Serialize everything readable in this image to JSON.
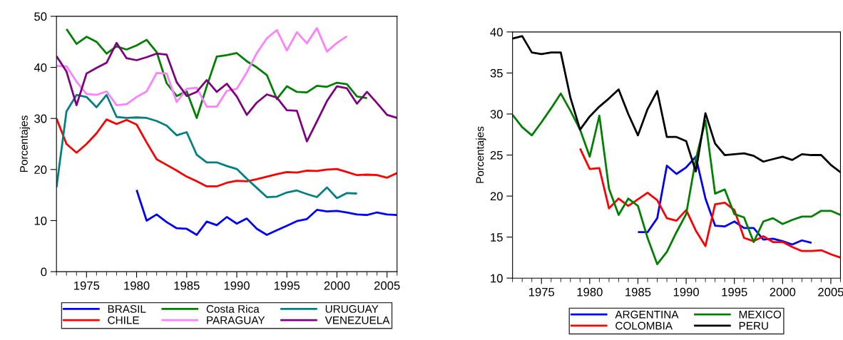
{
  "chart_data": [
    {
      "type": "line",
      "ylabel": "Porcentajes",
      "xlim": [
        1972,
        2006
      ],
      "xticks": [
        1975,
        1980,
        1985,
        1990,
        1995,
        2000,
        2005
      ],
      "ylim": [
        0,
        50
      ],
      "yticks": [
        0,
        10,
        20,
        30,
        40,
        50
      ],
      "grid": false,
      "legend": "bottom",
      "line_style": "solid",
      "marker": "none",
      "series": [
        {
          "name": "BRASIL",
          "color": "#0000ff",
          "x": [
            1980,
            1981,
            1982,
            1983,
            1984,
            1985,
            1986,
            1987,
            1988,
            1989,
            1990,
            1991,
            1992,
            1993,
            1994,
            1995,
            1996,
            1997,
            1998,
            1999,
            2000,
            2001,
            2002,
            2003,
            2004,
            2005,
            2006
          ],
          "values": [
            16,
            10,
            11.2,
            9.7,
            8.5,
            8.4,
            7.2,
            9.8,
            9.1,
            10.7,
            9.4,
            10.4,
            8.4,
            7.2,
            8.1,
            9,
            9.9,
            10.3,
            12.1,
            11.8,
            11.9,
            11.6,
            11.2,
            11.1,
            11.6,
            11.2,
            11.1
          ]
        },
        {
          "name": "CHILE",
          "color": "#ff0000",
          "x": [
            1972,
            1973,
            1974,
            1975,
            1976,
            1977,
            1978,
            1979,
            1980,
            1981,
            1982,
            1983,
            1984,
            1985,
            1986,
            1987,
            1988,
            1989,
            1990,
            1991,
            1992,
            1993,
            1994,
            1995,
            1996,
            1997,
            1998,
            1999,
            2000,
            2001,
            2002,
            2003,
            2004,
            2005,
            2006
          ],
          "values": [
            30,
            25,
            23.3,
            25,
            27.1,
            29.8,
            28.9,
            29.7,
            28.8,
            25.3,
            22,
            20.9,
            19.8,
            18.6,
            17.7,
            16.7,
            16.7,
            17.4,
            17.8,
            17.7,
            18.1,
            18.6,
            19.1,
            19.5,
            19.4,
            19.8,
            19.7,
            20,
            20.1,
            19.5,
            18.9,
            19,
            18.9,
            18.4,
            19.3
          ]
        },
        {
          "name": "Costa Rica",
          "color": "#008000",
          "x": [
            1973,
            1974,
            1975,
            1976,
            1977,
            1978,
            1979,
            1980,
            1981,
            1982,
            1983,
            1984,
            1985,
            1986,
            1987,
            1988,
            1989,
            1990,
            1991,
            1992,
            1993,
            1994,
            1995,
            1996,
            1997,
            1998,
            1999,
            2000,
            2001,
            2002,
            2003
          ],
          "values": [
            47.5,
            44.6,
            46,
            45,
            42.7,
            44.1,
            43.5,
            44.3,
            45.4,
            43,
            36.9,
            34.4,
            35.3,
            30.1,
            36.3,
            42.1,
            42.4,
            42.8,
            41.2,
            40,
            38.5,
            33.8,
            36.3,
            35.2,
            35.1,
            36.4,
            36.2,
            37,
            36.7,
            34.3,
            34
          ]
        },
        {
          "name": "PARAGUAY",
          "color": "#ff80ff",
          "x": [
            1972,
            1973,
            1974,
            1975,
            1976,
            1977,
            1978,
            1979,
            1980,
            1981,
            1982,
            1983,
            1984,
            1985,
            1986,
            1987,
            1988,
            1989,
            1990,
            1991,
            1992,
            1993,
            1994,
            1995,
            1996,
            1997,
            1998,
            1999,
            2000,
            2001
          ],
          "values": [
            40.3,
            40.2,
            37.2,
            34.8,
            34.6,
            35.3,
            32.6,
            32.8,
            34.2,
            35.3,
            38.9,
            38.8,
            33.2,
            35.8,
            36,
            32.3,
            32.3,
            35.4,
            35.8,
            39,
            42.8,
            45.7,
            47.3,
            43.3,
            46.9,
            44.7,
            47.7,
            43.1,
            44.8,
            46.1
          ]
        },
        {
          "name": "URUGUAY",
          "color": "#008080",
          "x": [
            1972,
            1973,
            1974,
            1975,
            1976,
            1977,
            1978,
            1979,
            1980,
            1981,
            1982,
            1983,
            1984,
            1985,
            1986,
            1987,
            1988,
            1989,
            1990,
            1991,
            1992,
            1993,
            1994,
            1995,
            1996,
            1997,
            1998,
            1999,
            2000,
            2001,
            2002
          ],
          "values": [
            16.5,
            31.4,
            34.6,
            34.2,
            32.2,
            34.6,
            30.3,
            30.1,
            30.2,
            30.1,
            29.5,
            28.6,
            26.7,
            27.3,
            22.9,
            21.4,
            21.4,
            20.7,
            20.1,
            18.2,
            16.4,
            14.6,
            14.7,
            15.5,
            15.9,
            15.2,
            14.6,
            16.5,
            14.4,
            15.4,
            15.3
          ]
        },
        {
          "name": "VENEZUELA",
          "color": "#800080",
          "x": [
            1972,
            1973,
            1974,
            1975,
            1976,
            1977,
            1978,
            1979,
            1980,
            1981,
            1982,
            1983,
            1984,
            1985,
            1986,
            1987,
            1988,
            1989,
            1990,
            1991,
            1992,
            1993,
            1994,
            1995,
            1996,
            1997,
            1998,
            1999,
            2000,
            2001,
            2002,
            2003,
            2004,
            2005,
            2006
          ],
          "values": [
            42.2,
            39.2,
            32.6,
            38.8,
            39.9,
            40.9,
            44.8,
            41.8,
            41.4,
            42,
            42.7,
            42.5,
            37.1,
            34.4,
            35.2,
            37.5,
            35.2,
            36.8,
            34.3,
            30.7,
            33.1,
            34.7,
            34.1,
            31.6,
            31.5,
            25.5,
            29.4,
            33.4,
            36.3,
            35.9,
            32.9,
            35.2,
            33,
            30.7,
            30.1
          ]
        }
      ]
    },
    {
      "type": "line",
      "ylabel": "Porcentajes",
      "xlim": [
        1972,
        2006
      ],
      "xticks": [
        1975,
        1980,
        1985,
        1990,
        1995,
        2000,
        2005
      ],
      "ylim": [
        10,
        40
      ],
      "yticks": [
        10,
        15,
        20,
        25,
        30,
        35,
        40
      ],
      "grid": false,
      "legend": "bottom",
      "line_style": "solid",
      "marker": "none",
      "series": [
        {
          "name": "ARGENTINA",
          "color": "#0000ff",
          "x": [
            1985,
            1986,
            1987,
            1988,
            1989,
            1990,
            1991,
            1992,
            1993,
            1994,
            1995,
            1996,
            1997,
            1998,
            1999,
            2000,
            2001,
            2002,
            2003
          ],
          "values": [
            15.6,
            15.6,
            17.3,
            23.7,
            22.7,
            23.5,
            24.8,
            19.7,
            16.4,
            16.3,
            16.9,
            16.1,
            16.1,
            14.7,
            14.8,
            14.5,
            14.1,
            14.6,
            14.3
          ]
        },
        {
          "name": "COLOMBIA",
          "color": "#ff0000",
          "x": [
            1979,
            1980,
            1981,
            1982,
            1983,
            1984,
            1985,
            1986,
            1987,
            1988,
            1989,
            1990,
            1991,
            1992,
            1993,
            1994,
            1995,
            1996,
            1997,
            1998,
            1999,
            2000,
            2001,
            2002,
            2003,
            2004,
            2005,
            2006
          ],
          "values": [
            25.8,
            23.3,
            23.4,
            18.5,
            19.7,
            18.8,
            19.6,
            20.4,
            19.5,
            17.3,
            17,
            18.3,
            15.8,
            13.9,
            19,
            19.2,
            18.3,
            14.9,
            14.5,
            15.1,
            14.4,
            14.4,
            13.8,
            13.3,
            13.3,
            13.4,
            12.9,
            12.5
          ]
        },
        {
          "name": "MEXICO",
          "color": "#008000",
          "x": [
            1972,
            1973,
            1974,
            1975,
            1976,
            1977,
            1978,
            1979,
            1980,
            1981,
            1982,
            1983,
            1984,
            1985,
            1986,
            1987,
            1988,
            1989,
            1990,
            1991,
            1992,
            1993,
            1994,
            1995,
            1996,
            1997,
            1998,
            1999,
            2000,
            2001,
            2002,
            2003,
            2004,
            2005,
            2006
          ],
          "values": [
            29.9,
            28.4,
            27.4,
            29,
            30.7,
            32.5,
            30.4,
            28.1,
            24.8,
            29.8,
            20.9,
            17.7,
            19.7,
            18.8,
            14.9,
            11.7,
            13.2,
            15.6,
            17.8,
            24.5,
            29.2,
            20.3,
            20.8,
            17.8,
            17.4,
            14.4,
            16.9,
            17.3,
            16.6,
            17.1,
            17.5,
            17.5,
            18.2,
            18.2,
            17.7
          ]
        },
        {
          "name": "PERU",
          "color": "#000000",
          "x": [
            1972,
            1973,
            1974,
            1975,
            1976,
            1977,
            1978,
            1979,
            1980,
            1981,
            1982,
            1983,
            1984,
            1985,
            1986,
            1987,
            1988,
            1989,
            1990,
            1991,
            1992,
            1993,
            1994,
            1995,
            1996,
            1997,
            1998,
            1999,
            2000,
            2001,
            2002,
            2003,
            2004,
            2005,
            2006
          ],
          "values": [
            39.2,
            39.5,
            37.5,
            37.3,
            37.5,
            37.5,
            32,
            28.1,
            29.7,
            30.9,
            31.9,
            33,
            30,
            27.4,
            30.6,
            32.8,
            27.2,
            27.2,
            26.7,
            23,
            30.1,
            26.4,
            25,
            25.1,
            25.2,
            24.9,
            24.2,
            24.5,
            24.8,
            24.4,
            25.1,
            25,
            25,
            23.8,
            22.9
          ]
        }
      ]
    }
  ]
}
